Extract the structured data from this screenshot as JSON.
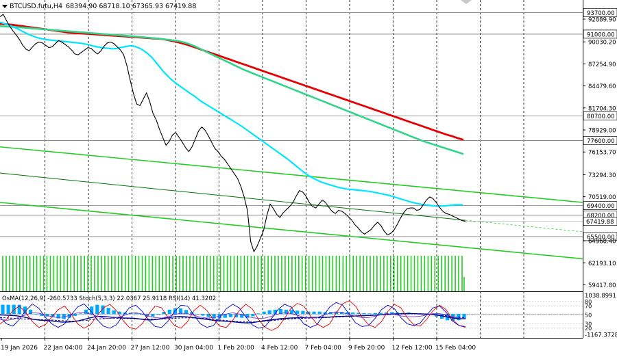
{
  "header": {
    "symbol": "BTCUSD.futu,H4",
    "ohlc": "68394.90 68718.10 67365.93 67419.88"
  },
  "chart_data": [
    {
      "type": "line",
      "panel": "price",
      "symbol": "BTCUSD.futu",
      "timeframe": "H4",
      "open": 68394.9,
      "high": 68718.1,
      "low": 67365.93,
      "close": 67419.88,
      "ylim": [
        58600,
        95300
      ],
      "y_ticks": [
        "92889.90",
        "90030.20",
        "87254.90",
        "84479.60",
        "81704.30",
        "78929.00",
        "76153.70",
        "73294.30",
        "70519.00",
        "64968.40",
        "62193.10",
        "59417.80"
      ],
      "x_ticks": [
        "19 Jan 2026",
        "22 Jan 04:00",
        "24 Jan 20:00",
        "27 Jan 12:00",
        "30 Jan 04:00",
        "1 Feb 20:00",
        "4 Feb 12:00",
        "7 Feb 04:00",
        "9 Feb 20:00",
        "12 Feb 12:00",
        "15 Feb 04:00"
      ],
      "levels": [
        {
          "label": "93700.00",
          "value": 93700
        },
        {
          "label": "91000.00",
          "value": 91000
        },
        {
          "label": "80700.00",
          "value": 80700
        },
        {
          "label": "77600.00",
          "value": 77600
        },
        {
          "label": "69400.00",
          "value": 69400
        },
        {
          "label": "68200.00",
          "value": 68200
        },
        {
          "label": "65500.00",
          "value": 65500
        }
      ],
      "last_price_label": "67419.88",
      "series": [
        {
          "color": "#000000",
          "values": [
            93200,
            93500,
            92700,
            92000,
            91400,
            90900,
            90300,
            89600,
            89100,
            88900,
            89400,
            89800,
            90000,
            89900,
            89600,
            89300,
            89400,
            89800,
            90200,
            90000,
            89700,
            89400,
            89000,
            88500,
            88400,
            88700,
            89000,
            89300,
            89200,
            88800,
            88500,
            88900,
            89500,
            89900,
            90000,
            89800,
            89400,
            89000,
            88400,
            87000,
            85200,
            83500,
            82200,
            82000,
            82800,
            83600,
            82500,
            81000,
            80200,
            79000,
            78000,
            77000,
            77500,
            78300,
            78600,
            78000,
            77400,
            76700,
            76200,
            76800,
            77800,
            78800,
            79300,
            78900,
            78200,
            77400,
            76600,
            76200,
            75600,
            75200,
            74600,
            74000,
            73400,
            72800,
            71800,
            70500,
            68800,
            64900,
            63600,
            64300,
            65300,
            66300,
            68200,
            69600,
            69000,
            68300,
            67900,
            68500,
            68900,
            69300,
            69800,
            70600,
            71300,
            71100,
            70600,
            69800,
            69300,
            69100,
            69600,
            70100,
            69800,
            69200,
            68700,
            68400,
            68800,
            68700,
            68400,
            68000,
            67600,
            67000,
            66600,
            66100,
            65800,
            66100,
            66400,
            66900,
            67300,
            66900,
            66200,
            65700,
            65900,
            66300,
            67000,
            67800,
            68500,
            69000,
            69100,
            69100,
            68800,
            68900,
            69500,
            70100,
            70500,
            70300,
            69800,
            69200,
            68700,
            68400,
            68300,
            68100,
            67900,
            67700,
            67500,
            67420
          ]
        },
        {
          "color": "#00e5ff",
          "values": [
            92500,
            92350,
            92200,
            92000,
            91800,
            91550,
            91300,
            91050,
            90850,
            90650,
            90500,
            90400,
            90300,
            90250,
            90200,
            90150,
            90100,
            90050,
            90000,
            89950,
            89900,
            89850,
            89750,
            89650,
            89500,
            89400,
            89300,
            89250,
            89200,
            89150,
            89200,
            89300,
            89400,
            89500,
            89550,
            89400,
            89200,
            88900,
            88550,
            88100,
            87500,
            86900,
            86300,
            85800,
            85300,
            84900,
            84550,
            84200,
            83850,
            83500,
            83200,
            82800,
            82450,
            82150,
            81850,
            81550,
            81250,
            80950,
            80650,
            80350,
            80050,
            79750,
            79450,
            79100,
            78750,
            78400,
            78050,
            77700,
            77350,
            77000,
            76650,
            76300,
            75950,
            75600,
            75250,
            74850,
            74450,
            74050,
            73650,
            73300,
            73000,
            72750,
            72500,
            72300,
            72150,
            72000,
            71850,
            71700,
            71600,
            71500,
            71450,
            71400,
            71350,
            71300,
            71250,
            71200,
            71100,
            71000,
            70900,
            70800,
            70700,
            70550,
            70400,
            70250,
            70100,
            69950,
            69800,
            69700,
            69600,
            69500,
            69450,
            69400,
            69350,
            69350,
            69350,
            69400,
            69450,
            69500,
            69500,
            69500
          ]
        },
        {
          "color": "#2ed58a",
          "values": [
            92000,
            91970,
            91930,
            91890,
            91850,
            91800,
            91750,
            91700,
            91650,
            91600,
            91550,
            91500,
            91450,
            91400,
            91350,
            91300,
            91250,
            91200,
            91150,
            91100,
            91050,
            91000,
            90950,
            90900,
            90850,
            90800,
            90750,
            90700,
            90650,
            90600,
            90540,
            90480,
            90420,
            90350,
            90280,
            90200,
            90100,
            89950,
            89750,
            89500,
            89200,
            88900,
            88600,
            88300,
            88000,
            87700,
            87400,
            87100,
            86800,
            86500,
            86250,
            86000,
            85750,
            85500,
            85250,
            85000,
            84750,
            84500,
            84250,
            84000,
            83750,
            83500,
            83250,
            83000,
            82750,
            82500,
            82250,
            82000,
            81750,
            81500,
            81250,
            81000,
            80750,
            80500,
            80250,
            80000,
            79750,
            79500,
            79250,
            79000,
            78750,
            78500,
            78250,
            78000,
            77750,
            77500,
            77300,
            77100,
            76900,
            76700,
            76500,
            76300,
            76100,
            75900
          ]
        },
        {
          "color": "#e80000",
          "values": [
            92300,
            92250,
            92180,
            92100,
            92000,
            91900,
            91800,
            91700,
            91600,
            91500,
            91400,
            91300,
            91200,
            91150,
            91100,
            91050,
            91000,
            90950,
            90900,
            90850,
            90800,
            90750,
            90700,
            90650,
            90600,
            90550,
            90500,
            90450,
            90400,
            90300,
            90150,
            90000,
            89800,
            89600,
            89350,
            89100,
            88850,
            88600,
            88350,
            88100,
            87850,
            87600,
            87350,
            87100,
            86850,
            86600,
            86350,
            86100,
            85850,
            85600,
            85350,
            85100,
            84850,
            84600,
            84350,
            84100,
            83850,
            83600,
            83350,
            83100,
            82850,
            82600,
            82350,
            82100,
            81850,
            81600,
            81350,
            81100,
            80850,
            80600,
            80350,
            80100,
            79850,
            79600,
            79350,
            79100,
            78850,
            78600,
            78350,
            78150,
            77900,
            77700
          ]
        }
      ],
      "channel_lines_bright": [
        {
          "color": "#22cc22",
          "from": [
            0,
            76800
          ],
          "to": [
            850,
            69800
          ]
        },
        {
          "color": "#22cc22",
          "from": [
            0,
            69800
          ],
          "to": [
            850,
            62700
          ]
        }
      ],
      "channel_line_dark": {
        "color": "#007700",
        "from": [
          0,
          73500
        ],
        "to": [
          679,
          67550
        ]
      },
      "projection": {
        "color": "#22cc22",
        "from": [
          679,
          67550
        ],
        "to": [
          850,
          66100
        ],
        "dashed": true
      }
    },
    {
      "type": "bar",
      "panel": "volume",
      "color": "#22cc22",
      "bar_count": 136,
      "last_bar_level": "low"
    },
    {
      "type": "line",
      "panel": "indicators",
      "label": "OsMA(12,26,9) -260.5733  Stoch(5,3,3) 22.0367 25.9118  RSI(14) 41.3202",
      "ylim": [
        -1300,
        1200
      ],
      "y_ticks": [
        {
          "text": "1038.8991",
          "value": 1038.8991
        },
        {
          "text": "-1167.3728",
          "value": -1167.3728
        }
      ],
      "oscillator_levels": [
        "80",
        "70",
        "50",
        "30",
        "20"
      ],
      "osma_color": "#00aaff",
      "series": [
        {
          "color": "#000080",
          "values": [
            -50,
            -60,
            -80,
            -100,
            -150,
            -220,
            -300,
            -340,
            -360,
            -380,
            -420,
            -450,
            -450,
            -430,
            -380,
            -300,
            -220,
            -150,
            -130,
            -150,
            -180,
            -200,
            -220,
            -230,
            -240,
            -280,
            -320,
            -330,
            -300,
            -250,
            -200,
            -160,
            -140,
            -150,
            -180,
            -220,
            -260,
            -300,
            -350,
            -380,
            -400,
            -420,
            -450,
            -480,
            -500,
            -480,
            -430,
            -380,
            -340,
            -300,
            -260,
            -240,
            -220,
            -210,
            -200,
            -200,
            -190,
            -180,
            -180,
            -160,
            -140,
            -130,
            -120,
            -110,
            -100,
            -90,
            -80,
            -60,
            -40,
            -20,
            0,
            10,
            20,
            30,
            20,
            10,
            0,
            -20,
            -60,
            -120,
            -180,
            -230,
            -260,
            -260
          ]
        },
        {
          "color": "#000080",
          "values": [
            -200,
            -210,
            -230,
            -250,
            -270,
            -290,
            -300,
            -310,
            -320,
            -330,
            -350,
            -370,
            -390,
            -400,
            -390,
            -370,
            -340,
            -300,
            -270,
            -250,
            -240,
            -240,
            -245,
            -250,
            -260,
            -270,
            -280,
            -290,
            -290,
            -285,
            -270,
            -250,
            -230,
            -215,
            -210,
            -220,
            -235,
            -255,
            -280,
            -310,
            -340,
            -370,
            -395,
            -420,
            -440,
            -445,
            -440,
            -420,
            -400,
            -370,
            -340,
            -310,
            -285,
            -265,
            -250,
            -240,
            -230,
            -220,
            -210,
            -195,
            -180,
            -165,
            -150,
            -135,
            -120,
            -105,
            -90,
            -75,
            -60,
            -45,
            -30,
            -15,
            0,
            5,
            10,
            10,
            5,
            -5,
            -20,
            -45,
            -80,
            -120,
            -160,
            -190,
            -210
          ]
        },
        {
          "color": "#e00000",
          "values": [
            30,
            40,
            60,
            70,
            55,
            35,
            22,
            28,
            45,
            62,
            70,
            52,
            30,
            20,
            28,
            48,
            66,
            74,
            60,
            38,
            22,
            18,
            30,
            52,
            70,
            66,
            44,
            26,
            20,
            35,
            60,
            72,
            60,
            40,
            25,
            22,
            38,
            60,
            74,
            64,
            40,
            22,
            15,
            22,
            42,
            65,
            76,
            70,
            48,
            30,
            22,
            30,
            55,
            75,
            82,
            70,
            45,
            28,
            22,
            35,
            58,
            74,
            66,
            44,
            28,
            25,
            40,
            60,
            72,
            62,
            40,
            26,
            22
          ]
        },
        {
          "color": "#0000cc",
          "values": [
            45,
            30,
            25,
            40,
            60,
            75,
            65,
            45,
            30,
            22,
            30,
            50,
            68,
            75,
            60,
            40,
            25,
            20,
            28,
            48,
            66,
            72,
            58,
            38,
            24,
            22,
            36,
            58,
            72,
            70,
            50,
            30,
            22,
            26,
            44,
            64,
            74,
            66,
            46,
            28,
            20,
            24,
            42,
            62,
            74,
            68,
            48,
            30,
            22,
            28,
            48,
            68,
            78,
            72,
            52,
            32,
            24,
            26,
            42,
            62,
            72,
            64,
            44,
            30,
            26,
            32,
            50,
            66,
            70,
            56,
            36,
            26,
            24
          ]
        },
        {
          "color": "#7a33cc",
          "values": [
            40,
            38,
            40,
            45,
            50,
            55,
            54,
            50,
            46,
            44,
            46,
            50,
            55,
            56,
            52,
            47,
            43,
            42,
            44,
            48,
            53,
            55,
            52,
            47,
            44,
            43,
            46,
            51,
            54,
            53,
            49,
            45,
            43,
            44,
            48,
            52,
            55,
            52,
            48,
            44,
            42,
            43,
            47,
            52,
            55,
            53,
            49,
            45,
            43,
            44,
            49,
            54,
            57,
            55,
            51,
            47,
            44,
            44,
            47,
            51,
            53,
            51,
            48,
            46,
            46,
            47,
            50,
            53,
            53,
            50,
            46,
            43,
            41
          ]
        }
      ]
    }
  ]
}
